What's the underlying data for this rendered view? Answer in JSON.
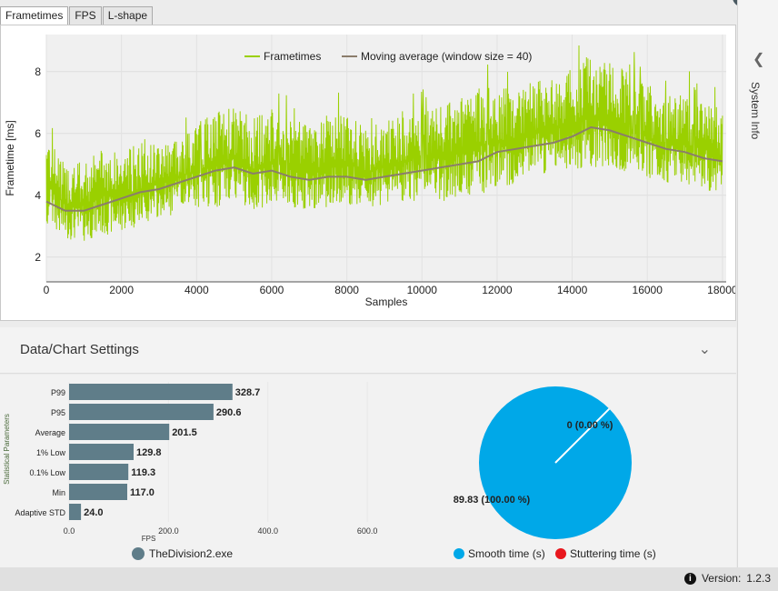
{
  "tabs": [
    {
      "label": "Frametimes"
    },
    {
      "label": "FPS"
    },
    {
      "label": "L-shape"
    }
  ],
  "sidebar": {
    "label": "System Info"
  },
  "settings": {
    "title": "Data/Chart Settings"
  },
  "version": {
    "label": "Version:",
    "value": "1.2.3"
  },
  "colors": {
    "frametimes": "#9ad000",
    "moving_avg": "#8b7d6b",
    "bars": "#5f7d89",
    "smooth": "#00a8e8",
    "stutter": "#e8171d"
  },
  "chart_data": [
    {
      "type": "line",
      "title": "",
      "xlabel": "Samples",
      "ylabel": "Frametime [ms]",
      "xlim": [
        0,
        18100
      ],
      "ylim": [
        1.2,
        9.2
      ],
      "xticks": [
        0,
        2000,
        4000,
        6000,
        8000,
        10000,
        12000,
        14000,
        16000,
        18000
      ],
      "yticks": [
        2,
        4,
        6,
        8
      ],
      "series": [
        {
          "name": "Frametimes",
          "color": "#9ad000",
          "x": [
            0,
            500,
            1000,
            1500,
            2000,
            2500,
            3000,
            3500,
            4000,
            4500,
            5000,
            5500,
            6000,
            6500,
            7000,
            7500,
            8000,
            8500,
            9000,
            9500,
            10000,
            10500,
            11000,
            11500,
            12000,
            12500,
            13000,
            13500,
            14000,
            14500,
            15000,
            15500,
            16000,
            16500,
            17000,
            17500,
            18000
          ],
          "low": [
            3.0,
            2.6,
            2.5,
            2.7,
            2.8,
            3.0,
            3.2,
            3.4,
            3.6,
            3.6,
            3.8,
            3.5,
            3.7,
            3.6,
            3.5,
            3.6,
            3.7,
            3.6,
            3.7,
            3.8,
            3.8,
            3.8,
            3.9,
            4.0,
            4.2,
            4.3,
            4.6,
            4.7,
            4.8,
            4.9,
            4.9,
            4.7,
            4.5,
            4.4,
            4.3,
            4.2,
            4.0
          ],
          "high": [
            6.2,
            5.0,
            5.1,
            5.6,
            5.4,
            5.7,
            5.8,
            6.0,
            6.3,
            6.7,
            6.9,
            6.5,
            6.8,
            6.4,
            6.3,
            6.6,
            6.7,
            6.2,
            6.4,
            6.6,
            7.1,
            6.9,
            7.2,
            7.5,
            7.7,
            7.6,
            7.7,
            7.9,
            8.1,
            8.6,
            8.3,
            8.0,
            7.6,
            7.2,
            7.3,
            7.1,
            6.8
          ]
        },
        {
          "name": "Moving average (window size = 40)",
          "color": "#8b7d6b",
          "x": [
            0,
            500,
            1000,
            1500,
            2000,
            2500,
            3000,
            3500,
            4000,
            4500,
            5000,
            5500,
            6000,
            6500,
            7000,
            7500,
            8000,
            8500,
            9000,
            9500,
            10000,
            10500,
            11000,
            11500,
            12000,
            12500,
            13000,
            13500,
            14000,
            14500,
            15000,
            15500,
            16000,
            16500,
            17000,
            17500,
            18000
          ],
          "y": [
            3.8,
            3.5,
            3.5,
            3.7,
            3.9,
            4.1,
            4.2,
            4.4,
            4.6,
            4.8,
            4.9,
            4.7,
            4.8,
            4.6,
            4.5,
            4.6,
            4.6,
            4.5,
            4.6,
            4.7,
            4.8,
            4.9,
            5.0,
            5.1,
            5.4,
            5.5,
            5.6,
            5.7,
            5.9,
            6.2,
            6.1,
            5.9,
            5.7,
            5.5,
            5.4,
            5.2,
            5.1
          ]
        }
      ],
      "legend": "top-center"
    },
    {
      "type": "bar",
      "orientation": "horizontal",
      "ylabel": "Statistical Parameters",
      "xlabel": "FPS",
      "xlim": [
        0,
        640
      ],
      "xticks": [
        "0.0",
        "200.0",
        "400.0",
        "600.0"
      ],
      "categories": [
        "P99",
        "P95",
        "Average",
        "1% Low",
        "0.1% Low",
        "Min",
        "Adaptive STD"
      ],
      "values": [
        328.7,
        290.6,
        201.5,
        129.8,
        119.3,
        117.0,
        24.0
      ],
      "labels": [
        "328.7",
        "290.6",
        "201.5",
        "129.8",
        "119.3",
        "117.0",
        "24.0"
      ],
      "legend": [
        {
          "name": "TheDivision2.exe",
          "color": "#5f7d89"
        }
      ]
    },
    {
      "type": "pie",
      "slices": [
        {
          "name": "Smooth time (s)",
          "value": 89.83,
          "label": "89.83 (100.00 %)",
          "color": "#00a8e8"
        },
        {
          "name": "Stuttering time (s)",
          "value": 0,
          "label": "0 (0.00 %)",
          "color": "#e8171d"
        }
      ]
    }
  ]
}
